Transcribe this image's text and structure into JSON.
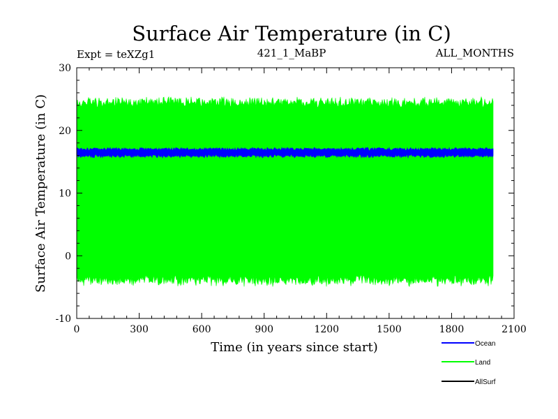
{
  "chart_data": {
    "type": "line",
    "title": "Surface Air Temperature (in C)",
    "subtitle_left": "Expt = teXZg1",
    "subtitle_center": "421_1_MaBP",
    "subtitle_right": "ALL_MONTHS",
    "xlabel": "Time (in years since start)",
    "ylabel": "Surface Air Temperature (in C)",
    "xlim": [
      0,
      2100
    ],
    "ylim": [
      -10,
      30
    ],
    "xticks": [
      0,
      300,
      600,
      900,
      1200,
      1500,
      1800,
      2100
    ],
    "yticks": [
      -10,
      0,
      10,
      20,
      30
    ],
    "xtick_labels": [
      "0",
      "300",
      "600",
      "900",
      "1200",
      "1500",
      "1800",
      "2100"
    ],
    "ytick_labels": [
      "-10",
      "0",
      "10",
      "20",
      "30"
    ],
    "series": [
      {
        "name": "Ocean",
        "color": "#0000ff",
        "x_range": [
          0,
          2000
        ],
        "mean": 16.5,
        "min": 15.6,
        "max": 17.3
      },
      {
        "name": "Land",
        "color": "#00ff00",
        "x_range": [
          0,
          2000
        ],
        "mean": 10.5,
        "min": -5.0,
        "max": 25.4
      },
      {
        "name": "AllSurf",
        "color": "#000000",
        "x_range": [
          0,
          2000
        ],
        "mean": null
      }
    ],
    "legend": [
      "Ocean",
      "Land",
      "AllSurf"
    ]
  }
}
